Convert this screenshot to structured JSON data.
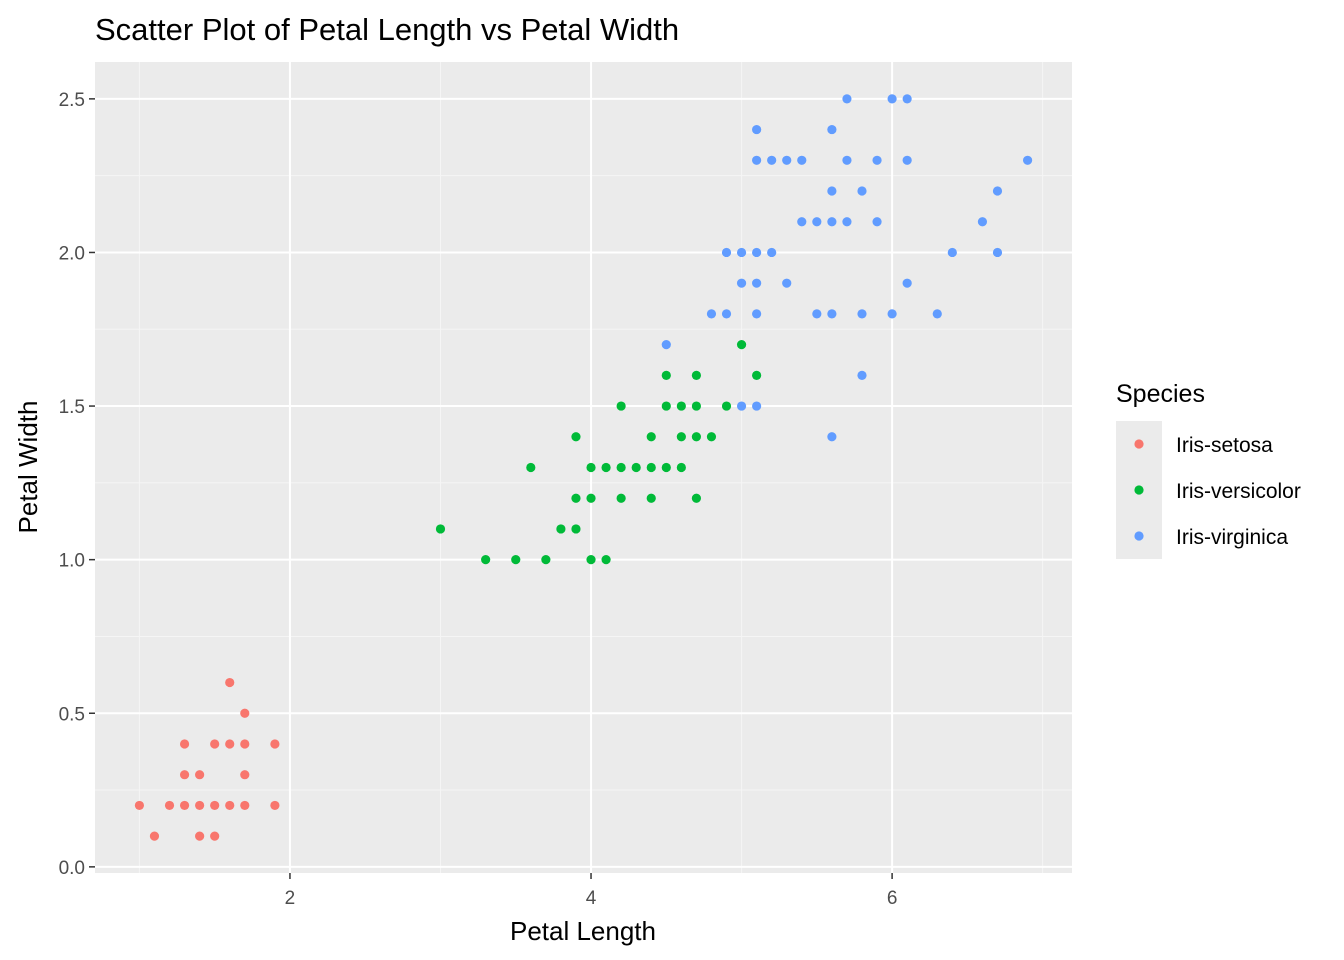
{
  "chart_data": {
    "type": "scatter",
    "title": "Scatter Plot of Petal Length vs Petal Width",
    "xlabel": "Petal Length",
    "ylabel": "Petal Width",
    "xlim": [
      0.705,
      7.195
    ],
    "ylim": [
      -0.02,
      2.62
    ],
    "x_ticks": [
      2,
      4,
      6
    ],
    "x_tick_labels": [
      "2",
      "4",
      "6"
    ],
    "y_ticks": [
      0.0,
      0.5,
      1.0,
      1.5,
      2.0,
      2.5
    ],
    "y_tick_labels": [
      "0.0",
      "0.5",
      "1.0",
      "1.5",
      "2.0",
      "2.5"
    ],
    "grid": true,
    "legend": {
      "title": "Species",
      "position": "right"
    },
    "series": [
      {
        "name": "Iris-setosa",
        "color": "#F8766D",
        "points": [
          [
            1.0,
            0.2
          ],
          [
            1.1,
            0.1
          ],
          [
            1.2,
            0.2
          ],
          [
            1.3,
            0.2
          ],
          [
            1.3,
            0.3
          ],
          [
            1.3,
            0.4
          ],
          [
            1.4,
            0.1
          ],
          [
            1.4,
            0.2
          ],
          [
            1.4,
            0.3
          ],
          [
            1.5,
            0.1
          ],
          [
            1.5,
            0.2
          ],
          [
            1.5,
            0.4
          ],
          [
            1.6,
            0.2
          ],
          [
            1.6,
            0.4
          ],
          [
            1.6,
            0.6
          ],
          [
            1.7,
            0.2
          ],
          [
            1.7,
            0.3
          ],
          [
            1.7,
            0.4
          ],
          [
            1.7,
            0.5
          ],
          [
            1.9,
            0.2
          ],
          [
            1.9,
            0.4
          ]
        ]
      },
      {
        "name": "Iris-versicolor",
        "color": "#00BA38",
        "points": [
          [
            3.0,
            1.1
          ],
          [
            3.3,
            1.0
          ],
          [
            3.5,
            1.0
          ],
          [
            3.6,
            1.3
          ],
          [
            3.7,
            1.0
          ],
          [
            3.8,
            1.1
          ],
          [
            3.9,
            1.1
          ],
          [
            3.9,
            1.2
          ],
          [
            3.9,
            1.4
          ],
          [
            4.0,
            1.0
          ],
          [
            4.0,
            1.2
          ],
          [
            4.0,
            1.3
          ],
          [
            4.1,
            1.0
          ],
          [
            4.1,
            1.3
          ],
          [
            4.2,
            1.2
          ],
          [
            4.2,
            1.3
          ],
          [
            4.2,
            1.5
          ],
          [
            4.3,
            1.3
          ],
          [
            4.4,
            1.2
          ],
          [
            4.4,
            1.3
          ],
          [
            4.4,
            1.4
          ],
          [
            4.5,
            1.3
          ],
          [
            4.5,
            1.5
          ],
          [
            4.5,
            1.6
          ],
          [
            4.6,
            1.3
          ],
          [
            4.6,
            1.4
          ],
          [
            4.6,
            1.5
          ],
          [
            4.7,
            1.2
          ],
          [
            4.7,
            1.4
          ],
          [
            4.7,
            1.5
          ],
          [
            4.7,
            1.6
          ],
          [
            4.8,
            1.4
          ],
          [
            4.9,
            1.5
          ],
          [
            5.0,
            1.7
          ],
          [
            5.1,
            1.6
          ]
        ]
      },
      {
        "name": "Iris-virginica",
        "color": "#619CFF",
        "points": [
          [
            4.5,
            1.7
          ],
          [
            4.8,
            1.8
          ],
          [
            4.9,
            1.8
          ],
          [
            4.9,
            2.0
          ],
          [
            5.0,
            1.5
          ],
          [
            5.0,
            1.9
          ],
          [
            5.0,
            2.0
          ],
          [
            5.1,
            1.5
          ],
          [
            5.1,
            1.8
          ],
          [
            5.1,
            1.9
          ],
          [
            5.1,
            2.0
          ],
          [
            5.1,
            2.3
          ],
          [
            5.1,
            2.4
          ],
          [
            5.2,
            2.0
          ],
          [
            5.2,
            2.3
          ],
          [
            5.3,
            1.9
          ],
          [
            5.3,
            2.3
          ],
          [
            5.4,
            2.1
          ],
          [
            5.4,
            2.3
          ],
          [
            5.5,
            1.8
          ],
          [
            5.5,
            2.1
          ],
          [
            5.6,
            1.4
          ],
          [
            5.6,
            1.8
          ],
          [
            5.6,
            2.1
          ],
          [
            5.6,
            2.2
          ],
          [
            5.6,
            2.4
          ],
          [
            5.7,
            2.1
          ],
          [
            5.7,
            2.3
          ],
          [
            5.7,
            2.5
          ],
          [
            5.8,
            1.6
          ],
          [
            5.8,
            1.8
          ],
          [
            5.8,
            2.2
          ],
          [
            5.9,
            2.1
          ],
          [
            5.9,
            2.3
          ],
          [
            6.0,
            1.8
          ],
          [
            6.0,
            2.5
          ],
          [
            6.1,
            1.9
          ],
          [
            6.1,
            2.3
          ],
          [
            6.1,
            2.5
          ],
          [
            6.3,
            1.8
          ],
          [
            6.4,
            2.0
          ],
          [
            6.6,
            2.1
          ],
          [
            6.7,
            2.0
          ],
          [
            6.7,
            2.2
          ],
          [
            6.9,
            2.3
          ]
        ]
      }
    ]
  },
  "style": {
    "panel_bg": "#EBEBEB",
    "grid_major": "#FFFFFF",
    "grid_minor": "#F5F5F5",
    "tick_color": "#333333",
    "legend_key_bg": "#EBEBEB"
  }
}
